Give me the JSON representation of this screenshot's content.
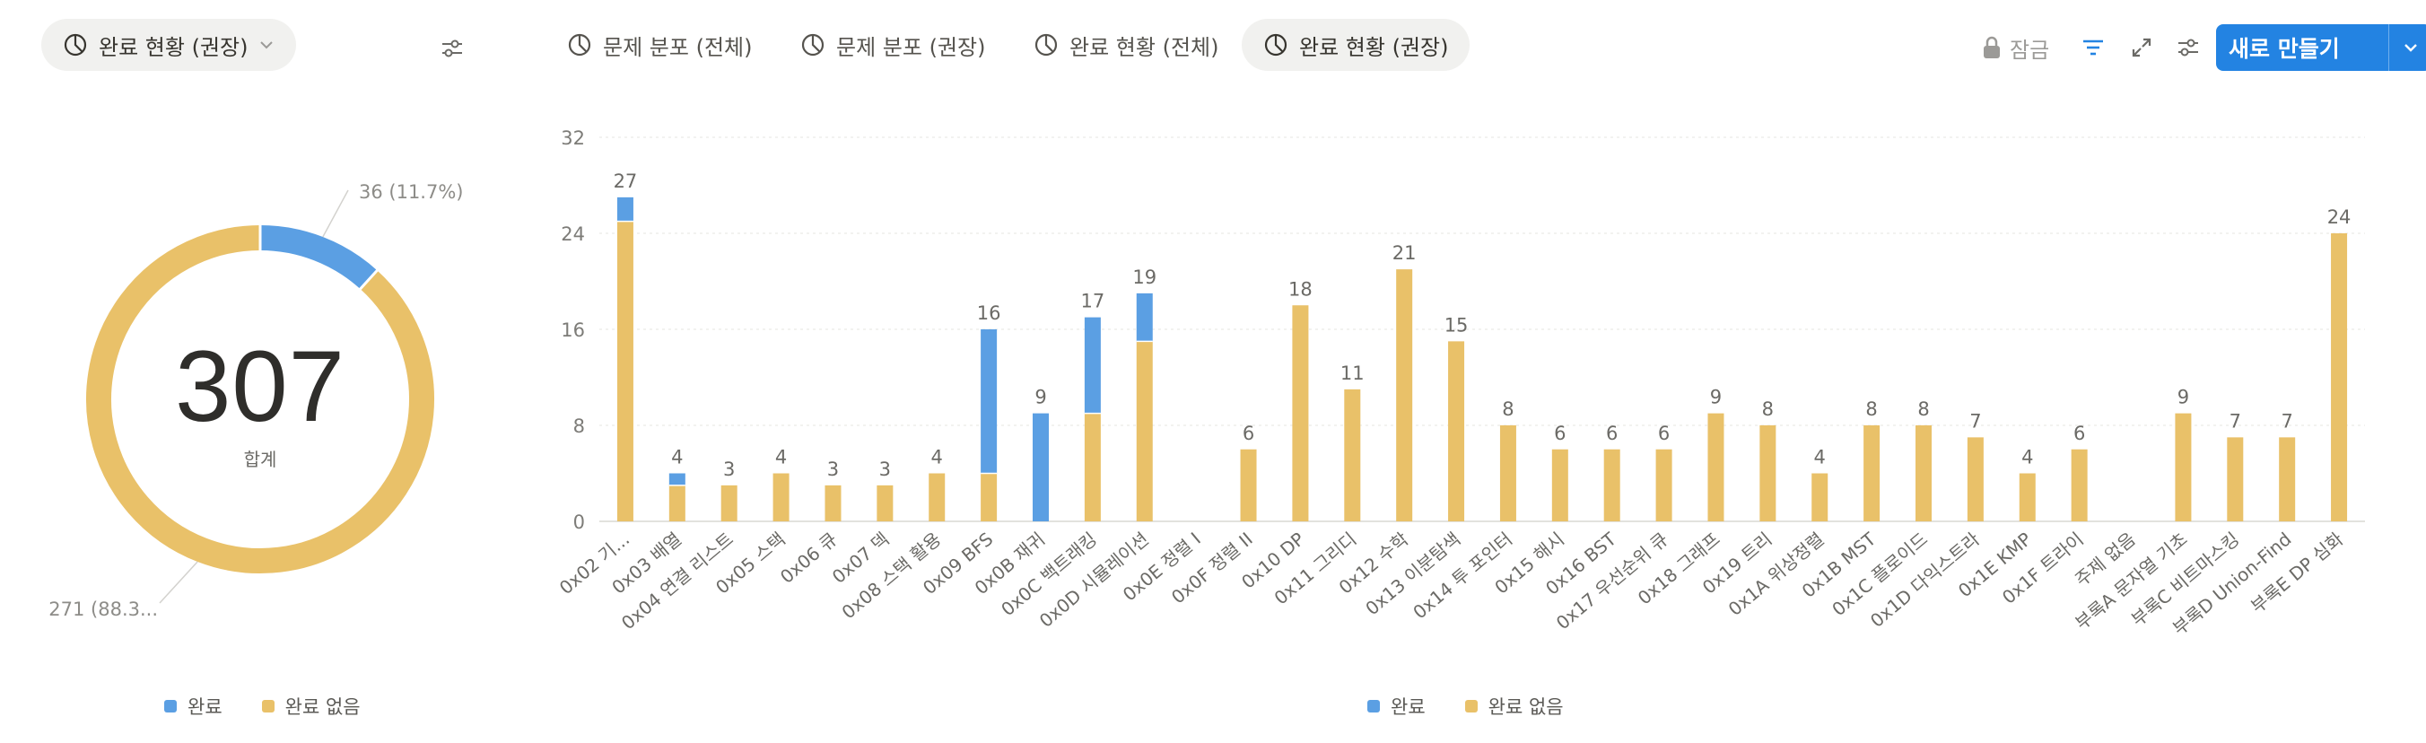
{
  "left_panel": {
    "view_chip_label": "완료 현황 (권장)",
    "settings_icon": "sliders-icon"
  },
  "tabs": [
    {
      "label": "문제 분포 (전체)",
      "icon": "pie-chart-icon",
      "active": false
    },
    {
      "label": "문제 분포 (권장)",
      "icon": "pie-chart-icon",
      "active": false
    },
    {
      "label": "완료 현황 (전체)",
      "icon": "pie-chart-icon",
      "active": false
    },
    {
      "label": "완료 현황 (권장)",
      "icon": "pie-chart-icon",
      "active": true
    }
  ],
  "toolbar": {
    "lock_label": "잠금",
    "new_label": "새로 만들기"
  },
  "colors": {
    "complete": "#5b9fe3",
    "incomplete": "#e9c169",
    "active_filter": "#2383e2",
    "primary": "#2383e2"
  },
  "donut": {
    "total": "307",
    "total_label": "합계",
    "complete_callout": "36 (11.7%)",
    "incomplete_callout": "271 (88.3..."
  },
  "chart_data": [
    {
      "type": "pie",
      "title": "",
      "slices": [
        {
          "label": "완료",
          "value": 36,
          "percent": 11.7
        },
        {
          "label": "완료 없음",
          "value": 271,
          "percent": 88.3
        }
      ],
      "legend": [
        "완료",
        "완료 없음"
      ],
      "legend_position": "bottom"
    },
    {
      "type": "bar",
      "stacked": true,
      "categories": [
        "0x02 기...",
        "0x03 배열",
        "0x04 연결 리스트",
        "0x05 스택",
        "0x06 큐",
        "0x07 덱",
        "0x08 스택 활용",
        "0x09 BFS",
        "0x0B 재귀",
        "0x0C 백트래킹",
        "0x0D 시뮬레이션",
        "0x0E 정렬 I",
        "0x0F 정렬 II",
        "0x10 DP",
        "0x11 그리디",
        "0x12 수학",
        "0x13 이분탐색",
        "0x14 투 포인터",
        "0x15 해시",
        "0x16 BST",
        "0x17 우선순위 큐",
        "0x18 그래프",
        "0x19 트리",
        "0x1A 위상정렬",
        "0x1B MST",
        "0x1C 플로이드",
        "0x1D 다익스트라",
        "0x1E KMP",
        "0x1F 트라이",
        "주제 없음",
        "부록A 문자열 기초",
        "부록C 비트마스킹",
        "부록D Union-Find",
        "부록E DP 심화"
      ],
      "series": [
        {
          "name": "완료",
          "values": [
            2,
            1,
            0,
            0,
            0,
            0,
            0,
            12,
            9,
            8,
            4,
            0,
            0,
            0,
            0,
            0,
            0,
            0,
            0,
            0,
            0,
            0,
            0,
            0,
            0,
            0,
            0,
            0,
            0,
            0,
            0,
            0,
            0,
            0
          ]
        },
        {
          "name": "완료 없음",
          "values": [
            25,
            3,
            3,
            4,
            3,
            3,
            4,
            4,
            0,
            9,
            15,
            0,
            6,
            18,
            11,
            21,
            15,
            8,
            6,
            6,
            6,
            9,
            8,
            4,
            8,
            8,
            7,
            4,
            6,
            0,
            9,
            7,
            7,
            24
          ]
        }
      ],
      "totals": [
        "27",
        "4",
        "3",
        "4",
        "3",
        "3",
        "4",
        "16",
        "9",
        "17",
        "19",
        "",
        "6",
        "18",
        "11",
        "21",
        "15",
        "8",
        "6",
        "6",
        "6",
        "9",
        "8",
        "4",
        "8",
        "8",
        "7",
        "4",
        "6",
        "",
        "9",
        "7",
        "7",
        "24"
      ],
      "ylim": [
        0,
        32
      ],
      "yticks": [
        "0",
        "8",
        "16",
        "24",
        "32"
      ],
      "grid": true,
      "legend": [
        "완료",
        "완료 없음"
      ],
      "legend_position": "bottom",
      "xlabel": "",
      "ylabel": "",
      "title": ""
    }
  ]
}
